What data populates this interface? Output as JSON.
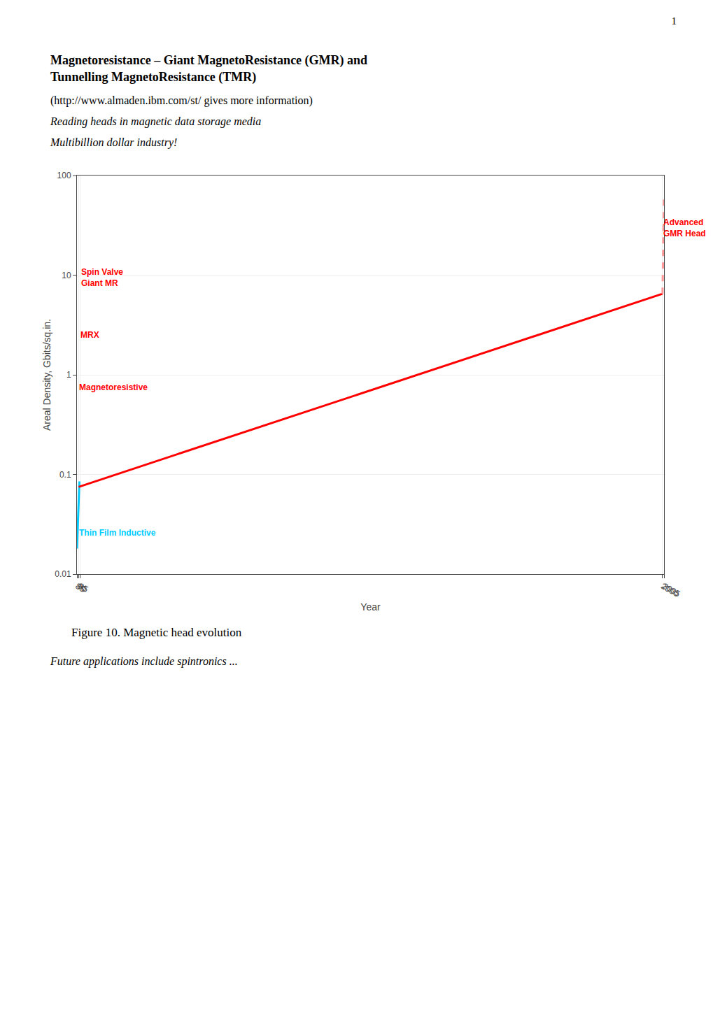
{
  "page_number": "1",
  "title": "Magnetoresistance – Giant MagnetoResistance (GMR) and\nTunnelling MagnetoResistance (TMR)",
  "subtitle": [
    "(http://www.almaden.ibm.com/st/ gives more information)",
    "Reading heads in magnetic data storage media",
    "Multibillion dollar industry!"
  ],
  "caption": "Figure 10. Magnetic head evolution",
  "footer": "Future applications include spintronics ...",
  "chart_data": {
    "type": "line",
    "xlabel": "Year",
    "ylabel": "Areal Density, Gbits/sq.in.",
    "log": "y",
    "grid": true,
    "xlim": [
      85,
      2005
    ],
    "xticks": [
      85,
      90,
      95,
      2000,
      2005
    ],
    "ylim": [
      0.01,
      100
    ],
    "yticks": [
      0.01,
      0.1,
      1,
      10,
      100
    ],
    "series": [
      {
        "color": "#00CCFF",
        "line_style": "solid",
        "x": [
          85,
          93
        ],
        "values": [
          0.018,
          0.085
        ]
      },
      {
        "color": "#FF0000",
        "line_style": "solid",
        "x": [
          90.5,
          2000
        ],
        "values": [
          0.075,
          6.5
        ]
      },
      {
        "color": "#FF9999",
        "line_style": "dashed",
        "x": [
          2000,
          2005
        ],
        "values": [
          6.5,
          65.0
        ]
      }
    ],
    "annotations": [
      {
        "text": "Thin Film Inductive",
        "x": 88.2,
        "y": 0.026,
        "color": "#00CCFF"
      },
      {
        "text": "Magnetoresistive",
        "x": 87.0,
        "y": 0.75,
        "color": "#FF0000"
      },
      {
        "text": "MRX",
        "x": 92.5,
        "y": 2.5,
        "color": "#FF0000"
      },
      {
        "text": "Spin Valve\nGiant MR",
        "x": 93.0,
        "y": 9.5,
        "color": "#FF0000"
      },
      {
        "text": "Advanced\nGMR Head",
        "x": 1997.5,
        "y": 30.0,
        "color": "#FF0000"
      }
    ]
  }
}
